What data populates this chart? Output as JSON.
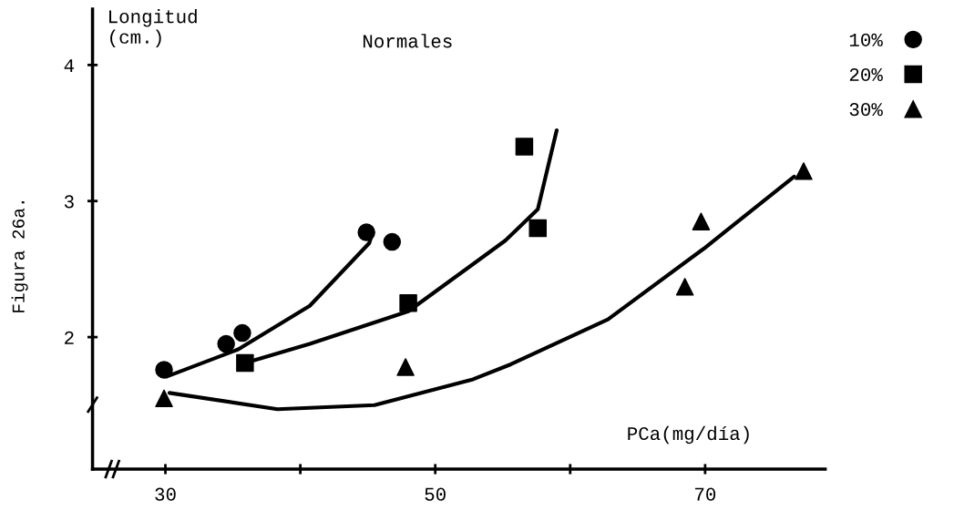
{
  "chart_data": {
    "type": "scatter",
    "title": "Normales",
    "xlabel": "PCa(mg/día)",
    "ylabel": "Longitud\n(cm.)",
    "annotations": [
      "Figura 26a."
    ],
    "xlim": [
      24.6,
      78.9
    ],
    "ylim": [
      1.03,
      4.41
    ],
    "xticks": [
      30,
      {
        "value": 40,
        "label": null
      },
      50,
      {
        "value": 60,
        "label": null
      },
      70
    ],
    "yticks": [
      2,
      3,
      4
    ],
    "grid": false,
    "legend": "top right",
    "series": [
      {
        "name": "10%",
        "marker": "circle",
        "color": "#000000",
        "x": [
          29.9,
          34.5,
          35.7,
          44.9,
          46.8
        ],
        "values": [
          1.76,
          1.95,
          2.03,
          2.77,
          2.7
        ]
      },
      {
        "name": "20%",
        "marker": "square",
        "color": "#000000",
        "x": [
          35.9,
          48.0,
          56.6,
          57.6
        ],
        "values": [
          1.81,
          2.25,
          3.4,
          2.8
        ]
      },
      {
        "name": "30%",
        "marker": "triangle",
        "color": "#000000",
        "x": [
          29.9,
          47.8,
          68.5,
          69.7,
          77.3
        ],
        "values": [
          1.55,
          1.78,
          2.37,
          2.85,
          3.22
        ]
      },
      {
        "type": "line",
        "color": "#000000",
        "line_style": "solid",
        "x": [
          30.1,
          35.4,
          40.7,
          45.1,
          45.3
        ],
        "values": [
          1.71,
          1.91,
          2.23,
          2.69,
          2.75
        ]
      },
      {
        "type": "line",
        "color": "#000000",
        "line_style": "solid",
        "x": [
          35.9,
          40.7,
          48.0,
          55.2,
          57.6,
          59.0
        ],
        "values": [
          1.81,
          1.95,
          2.19,
          2.71,
          2.94,
          3.52
        ]
      },
      {
        "type": "line",
        "color": "#000000",
        "line_style": "solid",
        "x": [
          30.3,
          38.3,
          45.5,
          52.8,
          55.6,
          62.8,
          69.9,
          76.6
        ],
        "values": [
          1.59,
          1.47,
          1.5,
          1.69,
          1.8,
          2.13,
          2.65,
          3.18
        ]
      }
    ]
  }
}
